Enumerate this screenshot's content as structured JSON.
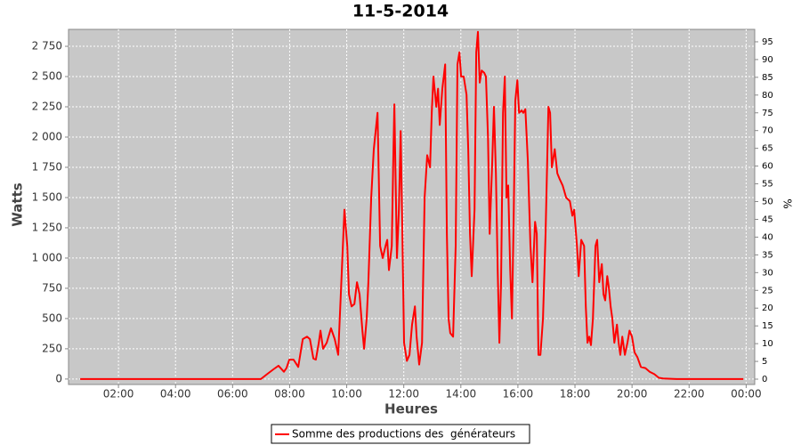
{
  "chart_data": {
    "type": "line",
    "title": "11-5-2014",
    "xlabel": "Heures",
    "ylabel": "Watts",
    "y2label": "%",
    "x": [
      0.66,
      6.99,
      7.21,
      7.43,
      7.61,
      7.8,
      7.89,
      7.99,
      8.14,
      8.3,
      8.46,
      8.61,
      8.71,
      8.83,
      8.92,
      9.02,
      9.08,
      9.17,
      9.3,
      9.45,
      9.58,
      9.7,
      9.83,
      9.92,
      10.02,
      10.08,
      10.17,
      10.27,
      10.36,
      10.45,
      10.55,
      10.61,
      10.7,
      10.76,
      10.86,
      10.95,
      11.08,
      11.17,
      11.26,
      11.36,
      11.42,
      11.48,
      11.58,
      11.64,
      11.67,
      11.76,
      11.83,
      11.89,
      11.95,
      12.01,
      12.11,
      12.2,
      12.29,
      12.39,
      12.45,
      12.54,
      12.64,
      12.73,
      12.82,
      12.92,
      12.98,
      13.04,
      13.14,
      13.2,
      13.26,
      13.35,
      13.45,
      13.51,
      13.57,
      13.63,
      13.73,
      13.82,
      13.88,
      13.95,
      14.01,
      14.1,
      14.2,
      14.26,
      14.32,
      14.38,
      14.48,
      14.54,
      14.6,
      14.66,
      14.73,
      14.82,
      14.88,
      14.95,
      15.01,
      15.1,
      15.16,
      15.23,
      15.29,
      15.35,
      15.41,
      15.48,
      15.54,
      15.6,
      15.66,
      15.73,
      15.79,
      15.85,
      15.91,
      15.98,
      16.04,
      16.13,
      16.19,
      16.26,
      16.35,
      16.44,
      16.51,
      16.6,
      16.66,
      16.72,
      16.79,
      16.88,
      16.97,
      17.07,
      17.13,
      17.19,
      17.29,
      17.38,
      17.47,
      17.57,
      17.69,
      17.82,
      17.91,
      17.97,
      18.07,
      18.13,
      18.22,
      18.32,
      18.38,
      18.44,
      18.5,
      18.56,
      18.63,
      18.72,
      18.78,
      18.85,
      18.94,
      19.0,
      19.06,
      19.13,
      19.19,
      19.25,
      19.31,
      19.38,
      19.47,
      19.53,
      19.59,
      19.66,
      19.75,
      19.84,
      19.91,
      20.0,
      20.09,
      20.19,
      20.31,
      20.47,
      20.62,
      20.78,
      20.94,
      21.09,
      21.56,
      23.9
    ],
    "series": [
      {
        "name": "Somme des productions des  générateurs",
        "color": "#ff0000",
        "values": [
          0,
          0,
          40,
          80,
          110,
          60,
          90,
          160,
          160,
          100,
          330,
          350,
          330,
          170,
          160,
          300,
          400,
          250,
          300,
          420,
          330,
          200,
          900,
          1400,
          1100,
          700,
          600,
          620,
          800,
          700,
          400,
          250,
          500,
          800,
          1500,
          1900,
          2200,
          1100,
          1000,
          1100,
          1150,
          900,
          1100,
          1900,
          2270,
          1000,
          1400,
          2050,
          1200,
          300,
          150,
          200,
          450,
          600,
          350,
          120,
          300,
          1500,
          1850,
          1750,
          2200,
          2500,
          2250,
          2400,
          2100,
          2400,
          2600,
          1200,
          500,
          380,
          350,
          1100,
          2600,
          2700,
          2500,
          2500,
          2350,
          1900,
          1200,
          850,
          1400,
          2700,
          2870,
          2450,
          2550,
          2530,
          2500,
          2000,
          1200,
          1800,
          2250,
          1700,
          900,
          300,
          800,
          2200,
          2500,
          1500,
          1600,
          900,
          500,
          1300,
          2300,
          2470,
          2200,
          2220,
          2200,
          2230,
          1800,
          1100,
          800,
          1300,
          1200,
          200,
          200,
          500,
          1200,
          2250,
          2200,
          1750,
          1900,
          1700,
          1650,
          1600,
          1500,
          1470,
          1350,
          1400,
          1100,
          850,
          1150,
          1100,
          600,
          300,
          350,
          280,
          500,
          1100,
          1150,
          800,
          950,
          700,
          650,
          850,
          750,
          600,
          500,
          300,
          450,
          300,
          200,
          350,
          200,
          300,
          400,
          350,
          220,
          180,
          100,
          90,
          60,
          40,
          10,
          5,
          0,
          0
        ]
      }
    ],
    "xlim": [
      0.25,
      24.3
    ],
    "xticks": [
      {
        "value": 2,
        "label": "02:00"
      },
      {
        "value": 4,
        "label": "04:00"
      },
      {
        "value": 6,
        "label": "06:00"
      },
      {
        "value": 8,
        "label": "08:00"
      },
      {
        "value": 10,
        "label": "10:00"
      },
      {
        "value": 12,
        "label": "12:00"
      },
      {
        "value": 14,
        "label": "14:00"
      },
      {
        "value": 16,
        "label": "16:00"
      },
      {
        "value": 18,
        "label": "18:00"
      },
      {
        "value": 20,
        "label": "20:00"
      },
      {
        "value": 22,
        "label": "22:00"
      },
      {
        "value": 24,
        "label": "00:00"
      }
    ],
    "ylim": [
      -45,
      2890
    ],
    "yticks": [
      0,
      250,
      500,
      750,
      {
        "value": 1000,
        "label": "1 000"
      },
      {
        "value": 1250,
        "label": "1 250"
      },
      {
        "value": 1500,
        "label": "1 500"
      },
      {
        "value": 1750,
        "label": "1 750"
      },
      {
        "value": 2000,
        "label": "2 000"
      },
      {
        "value": 2250,
        "label": "2 250"
      },
      {
        "value": 2500,
        "label": "2 500"
      },
      {
        "value": 2750,
        "label": "2 750"
      }
    ],
    "y2lim": [
      -1.5,
      98.5
    ],
    "y2ticks": [
      0,
      5,
      10,
      15,
      20,
      25,
      30,
      35,
      40,
      45,
      50,
      55,
      60,
      65,
      70,
      75,
      80,
      85,
      90,
      95
    ],
    "grid": true,
    "legend": "bottom"
  }
}
